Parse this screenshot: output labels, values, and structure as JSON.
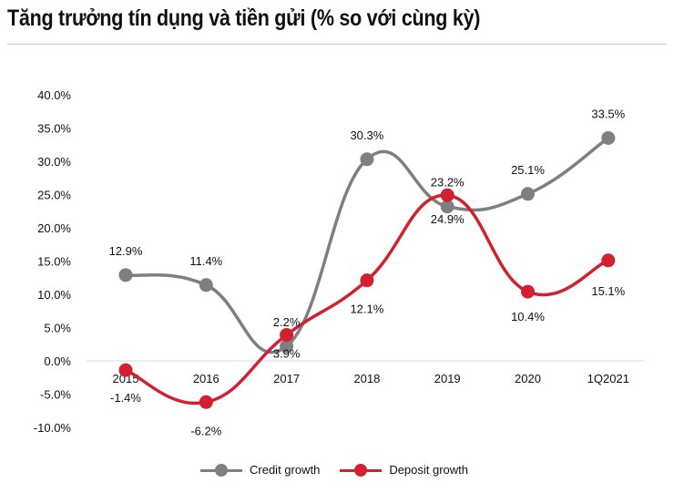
{
  "title": "Tăng trưởng tín dụng và tiền gửi (% so với cùng kỳ)",
  "colors": {
    "credit": "#7f7f7f",
    "deposit": "#d22030",
    "grid": "#d9d9d9"
  },
  "chart_data": {
    "type": "line",
    "title": "Tăng trưởng tín dụng và tiền gửi (% so với cùng kỳ)",
    "categories": [
      "2015",
      "2016",
      "2017",
      "2018",
      "2019",
      "2020",
      "1Q2021"
    ],
    "y_tick_labels": [
      "40.0%",
      "35.0%",
      "30.0%",
      "25.0%",
      "20.0%",
      "15.0%",
      "10.0%",
      "5.0%",
      "0.0%",
      "-5.0%",
      "-10.0%"
    ],
    "ylim": [
      -10,
      40
    ],
    "grid": false,
    "legend_position": "bottom",
    "series": [
      {
        "name": "Credit growth",
        "values": [
          12.9,
          11.4,
          2.2,
          30.3,
          23.2,
          25.1,
          33.5
        ],
        "labels": [
          "12.9%",
          "11.4%",
          "2.2%",
          "30.3%",
          "23.2%",
          "25.1%",
          "33.5%"
        ]
      },
      {
        "name": "Deposit growth",
        "values": [
          -1.4,
          -6.2,
          3.9,
          12.1,
          24.9,
          10.4,
          15.1
        ],
        "labels": [
          "-1.4%",
          "-6.2%",
          "3.9%",
          "12.1%",
          "24.9%",
          "10.4%",
          "15.1%"
        ]
      }
    ]
  }
}
